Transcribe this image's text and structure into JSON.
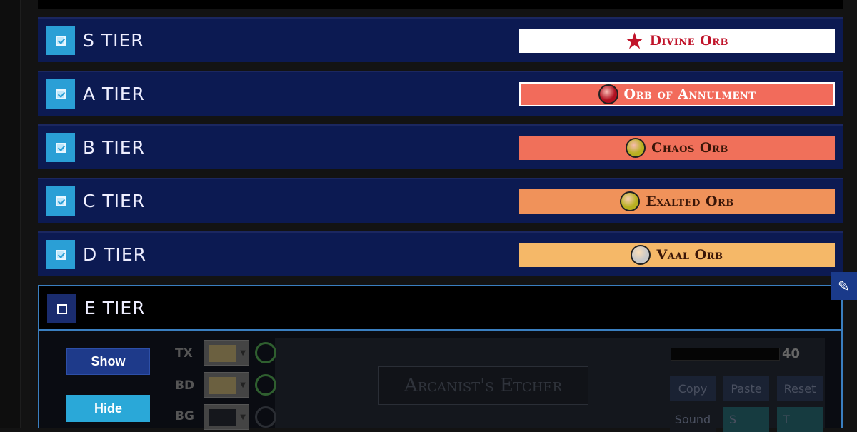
{
  "tiers": [
    {
      "label": "S TIER",
      "checked": true,
      "item": "Divine Orb",
      "bg": "#ffffff",
      "fg": "#c0142a",
      "icon": "star-icon"
    },
    {
      "label": "A TIER",
      "checked": true,
      "item": "Orb of Annulment",
      "bg": "#f26b5b",
      "fg": "#ffffff",
      "icon": "red-orb-icon"
    },
    {
      "label": "B TIER",
      "checked": true,
      "item": "Chaos Orb",
      "bg": "#f0705a",
      "fg": "#3a1608",
      "icon": "yellow-orb-icon"
    },
    {
      "label": "C TIER",
      "checked": true,
      "item": "Exalted Orb",
      "bg": "#f0925a",
      "fg": "#3a1608",
      "icon": "yellow-orb-icon"
    },
    {
      "label": "D TIER",
      "checked": true,
      "item": "Vaal Orb",
      "bg": "#f5b868",
      "fg": "#3a1608",
      "icon": "grey-orb-icon"
    }
  ],
  "expanded": {
    "label": "E TIER",
    "checked": false,
    "show": "Show",
    "hide": "Hide",
    "color_labels": [
      "TX",
      "BD",
      "BG"
    ],
    "preview": "Arcanist's Etcher",
    "font_size": "40",
    "copy": "Copy",
    "paste": "Paste",
    "reset": "Reset",
    "sound": "Sound",
    "s": "S",
    "t": "T"
  }
}
